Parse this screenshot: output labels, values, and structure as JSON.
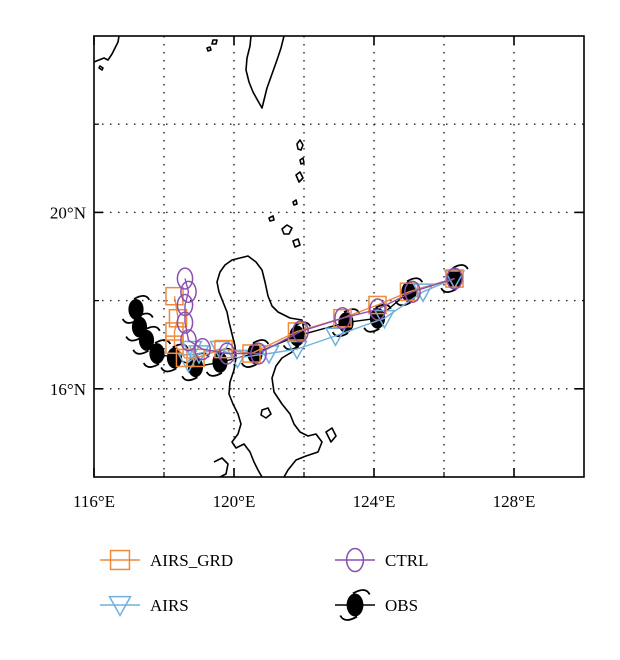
{
  "map": {
    "lon_range": [
      116,
      130
    ],
    "lat_range": [
      14,
      24
    ],
    "x_ticks": [
      {
        "value": 116,
        "label": "116°E"
      },
      {
        "value": 120,
        "label": "120°E"
      },
      {
        "value": 124,
        "label": "124°E"
      },
      {
        "value": 128,
        "label": "128°E"
      }
    ],
    "y_ticks": [
      {
        "value": 20,
        "label": "20°N"
      },
      {
        "value": 16,
        "label": "16°N"
      }
    ],
    "grid_lons": [
      118,
      120,
      122,
      124,
      126,
      128
    ],
    "grid_lats": [
      16,
      18,
      20,
      22
    ],
    "grid": "dotted"
  },
  "chart_data": {
    "type": "scatter",
    "x_label_unit": "°E",
    "y_label_unit": "°N",
    "series": [
      {
        "name": "OBS",
        "color": "#000000",
        "marker": "typhoon-symbol",
        "points": [
          [
            126.3,
            18.5
          ],
          [
            125.0,
            18.2
          ],
          [
            124.1,
            17.6
          ],
          [
            123.2,
            17.5
          ],
          [
            121.8,
            17.2
          ],
          [
            120.6,
            16.8
          ],
          [
            119.6,
            16.6
          ],
          [
            118.9,
            16.5
          ],
          [
            118.3,
            16.7
          ],
          [
            117.8,
            16.8
          ],
          [
            117.5,
            17.1
          ],
          [
            117.3,
            17.4
          ],
          [
            117.2,
            17.8
          ]
        ]
      },
      {
        "name": "AIRS_GRD",
        "color": "#f08a3c",
        "marker": "square",
        "points": [
          [
            126.3,
            18.5
          ],
          [
            125.0,
            18.2
          ],
          [
            124.1,
            17.9
          ],
          [
            123.1,
            17.6
          ],
          [
            121.8,
            17.3
          ],
          [
            120.5,
            16.8
          ],
          [
            119.7,
            16.9
          ],
          [
            118.9,
            16.7
          ],
          [
            118.6,
            16.7
          ],
          [
            118.3,
            17.0
          ],
          [
            118.3,
            17.3
          ],
          [
            118.4,
            17.6
          ],
          [
            118.3,
            18.1
          ]
        ]
      },
      {
        "name": "CTRL",
        "color": "#8a4fb0",
        "marker": "circle",
        "points": [
          [
            126.3,
            18.5
          ],
          [
            125.1,
            18.2
          ],
          [
            124.1,
            17.8
          ],
          [
            123.1,
            17.6
          ],
          [
            121.9,
            17.3
          ],
          [
            120.7,
            16.8
          ],
          [
            119.8,
            16.8
          ],
          [
            119.1,
            16.9
          ],
          [
            118.7,
            17.1
          ],
          [
            118.6,
            17.5
          ],
          [
            118.6,
            17.9
          ],
          [
            118.7,
            18.2
          ],
          [
            118.6,
            18.5
          ]
        ]
      },
      {
        "name": "AIRS",
        "color": "#6fb0de",
        "marker": "triangle-down",
        "points": [
          [
            126.3,
            18.5
          ],
          [
            125.4,
            18.2
          ],
          [
            124.3,
            17.6
          ],
          [
            122.9,
            17.2
          ],
          [
            121.8,
            16.9
          ],
          [
            121.0,
            16.8
          ],
          [
            120.1,
            16.7
          ],
          [
            119.6,
            16.9
          ],
          [
            119.0,
            16.8
          ],
          [
            118.7,
            16.6
          ],
          [
            118.8,
            16.9
          ]
        ]
      }
    ],
    "legend_placement": "bottom"
  },
  "legend": {
    "items": [
      {
        "name": "AIRS_GRD",
        "label": "AIRS_GRD",
        "color": "#f08a3c",
        "marker": "square"
      },
      {
        "name": "CTRL",
        "label": "CTRL",
        "color": "#8a4fb0",
        "marker": "circle"
      },
      {
        "name": "AIRS",
        "label": "AIRS",
        "color": "#6fb0de",
        "marker": "triangle-down"
      },
      {
        "name": "OBS",
        "label": "OBS",
        "color": "#000000",
        "marker": "typhoon-symbol"
      }
    ]
  }
}
